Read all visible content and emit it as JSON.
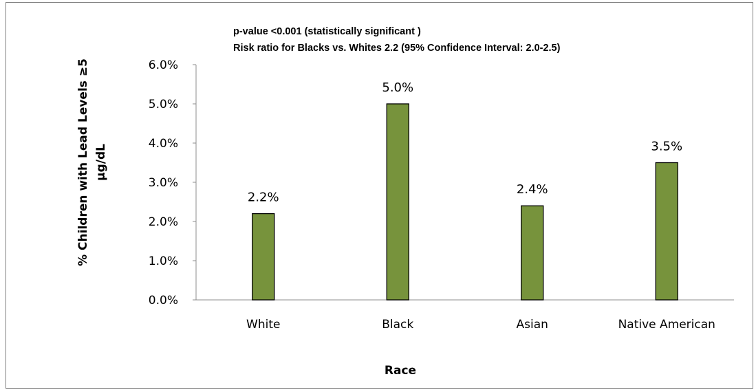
{
  "chart_data": {
    "type": "bar",
    "annotations": [
      "p-value <0.001 (statistically significant )",
      "Risk ratio for Blacks vs. Whites 2.2 (95% Confidence Interval:  2.0-2.5)"
    ],
    "xlabel": "Race",
    "ylabel_lines": [
      "% Children with Lead Levels ≥5",
      "µg/dL"
    ],
    "categories": [
      "White",
      "Black",
      "Asian",
      "Native American"
    ],
    "values": [
      2.2,
      5.0,
      2.4,
      3.5
    ],
    "data_labels": [
      "2.2%",
      "5.0%",
      "2.4%",
      "3.5%"
    ],
    "ylim": [
      0,
      6
    ],
    "yticks": [
      "0.0%",
      "1.0%",
      "2.0%",
      "3.0%",
      "4.0%",
      "5.0%",
      "6.0%"
    ],
    "bar_color": "#77933C",
    "grid": false,
    "legend": "none"
  }
}
